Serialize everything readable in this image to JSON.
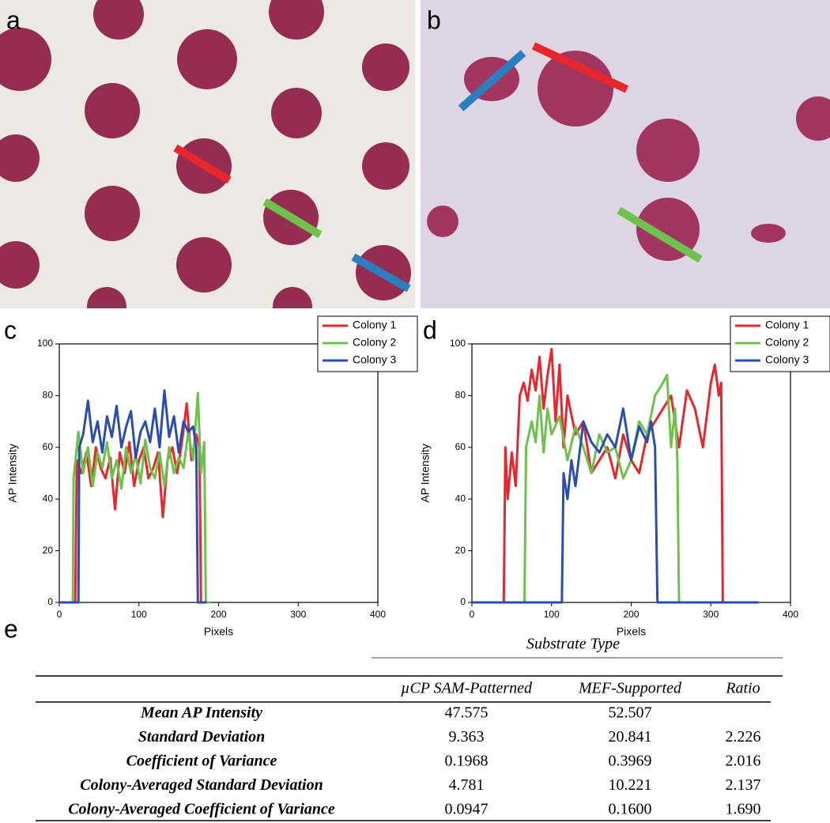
{
  "panel_labels": {
    "a": "a",
    "b": "b",
    "c": "c",
    "d": "d",
    "e": "e"
  },
  "chart_data": [
    {
      "type": "line",
      "xlabel": "Pixels",
      "ylabel": "AP Intensity",
      "xlim": [
        0,
        400
      ],
      "xticks": [
        0,
        100,
        200,
        300,
        400
      ],
      "ylim": [
        0,
        100
      ],
      "yticks": [
        0,
        20,
        40,
        60,
        80,
        100
      ],
      "legend": "upper right",
      "series": [
        {
          "name": "Colony 1",
          "color": "#e8262b",
          "x": [
            0,
            10,
            20,
            22,
            28,
            34,
            40,
            46,
            52,
            58,
            64,
            70,
            76,
            82,
            88,
            94,
            100,
            106,
            112,
            118,
            124,
            130,
            136,
            142,
            148,
            154,
            160,
            166,
            172,
            176,
            178,
            185
          ],
          "values": [
            0,
            0,
            0,
            55,
            50,
            58,
            45,
            60,
            52,
            48,
            56,
            36,
            58,
            50,
            62,
            45,
            55,
            60,
            48,
            52,
            58,
            33,
            55,
            60,
            50,
            62,
            77,
            55,
            65,
            60,
            0,
            0
          ]
        },
        {
          "name": "Colony 2",
          "color": "#6cc24a",
          "x": [
            0,
            10,
            17,
            18,
            24,
            30,
            36,
            42,
            48,
            54,
            60,
            66,
            72,
            78,
            84,
            90,
            96,
            102,
            108,
            114,
            120,
            126,
            132,
            138,
            144,
            150,
            156,
            162,
            168,
            174,
            178,
            182,
            184,
            190
          ],
          "values": [
            0,
            0,
            0,
            48,
            66,
            50,
            60,
            45,
            58,
            52,
            62,
            48,
            55,
            44,
            60,
            50,
            57,
            46,
            63,
            52,
            48,
            58,
            45,
            60,
            50,
            56,
            52,
            66,
            55,
            81,
            50,
            62,
            0,
            0
          ]
        },
        {
          "name": "Colony 3",
          "color": "#2b4db3",
          "x": [
            0,
            10,
            24,
            25,
            30,
            36,
            42,
            48,
            54,
            60,
            66,
            72,
            78,
            84,
            90,
            96,
            102,
            108,
            114,
            120,
            126,
            132,
            138,
            144,
            150,
            156,
            162,
            168,
            172,
            174,
            176,
            185
          ],
          "values": [
            0,
            0,
            0,
            60,
            65,
            78,
            62,
            70,
            58,
            72,
            64,
            76,
            60,
            68,
            74,
            56,
            66,
            70,
            62,
            75,
            60,
            82,
            64,
            72,
            58,
            70,
            66,
            68,
            60,
            0,
            0,
            0
          ]
        }
      ]
    },
    {
      "type": "line",
      "xlabel": "Pixels",
      "ylabel": "AP Intensity",
      "xlim": [
        0,
        400
      ],
      "xticks": [
        0,
        100,
        200,
        300,
        400
      ],
      "ylim": [
        0,
        100
      ],
      "yticks": [
        0,
        20,
        40,
        60,
        80,
        100
      ],
      "legend": "upper right",
      "series": [
        {
          "name": "Colony 1",
          "color": "#e8262b",
          "x": [
            0,
            40,
            42,
            45,
            50,
            55,
            60,
            65,
            70,
            75,
            80,
            85,
            90,
            95,
            100,
            105,
            110,
            115,
            120,
            130,
            140,
            150,
            160,
            170,
            180,
            190,
            200,
            210,
            220,
            230,
            240,
            250,
            260,
            270,
            280,
            290,
            300,
            305,
            310,
            313,
            315,
            330,
            360
          ],
          "values": [
            0,
            0,
            60,
            40,
            58,
            45,
            80,
            85,
            78,
            90,
            82,
            95,
            75,
            88,
            98,
            70,
            92,
            60,
            80,
            65,
            70,
            50,
            55,
            60,
            48,
            65,
            55,
            50,
            65,
            70,
            75,
            80,
            60,
            82,
            75,
            60,
            85,
            92,
            80,
            85,
            0,
            0,
            0
          ]
        },
        {
          "name": "Colony 2",
          "color": "#6cc24a",
          "x": [
            0,
            60,
            66,
            68,
            75,
            80,
            85,
            90,
            95,
            100,
            110,
            120,
            130,
            140,
            150,
            160,
            170,
            180,
            190,
            200,
            210,
            220,
            230,
            240,
            245,
            250,
            255,
            258,
            260,
            280,
            290
          ],
          "values": [
            0,
            0,
            0,
            60,
            70,
            62,
            80,
            58,
            75,
            65,
            72,
            55,
            68,
            60,
            50,
            65,
            58,
            60,
            48,
            55,
            70,
            65,
            80,
            85,
            88,
            60,
            75,
            55,
            0,
            0,
            0
          ]
        },
        {
          "name": "Colony 3",
          "color": "#2b4db3",
          "x": [
            0,
            110,
            113,
            115,
            120,
            125,
            130,
            140,
            150,
            160,
            170,
            180,
            190,
            200,
            210,
            220,
            225,
            230,
            233,
            235,
            250,
            360
          ],
          "values": [
            0,
            0,
            0,
            50,
            40,
            55,
            45,
            70,
            62,
            58,
            65,
            60,
            75,
            55,
            68,
            62,
            70,
            60,
            0,
            0,
            0,
            0
          ]
        }
      ]
    }
  ],
  "table": {
    "group_header": "Substrate Type",
    "columns": [
      "µCP SAM-Patterned",
      "MEF-Supported",
      "Ratio"
    ],
    "rows": [
      {
        "label": "Mean AP Intensity",
        "cells": [
          "47.575",
          "52.507"
        ]
      },
      {
        "label": "Standard Deviation",
        "cells": [
          "9.363",
          "20.841",
          "2.226"
        ]
      },
      {
        "label": "Coefficient of Variance",
        "cells": [
          "0.1968",
          "0.3969",
          "2.016"
        ]
      },
      {
        "label": "Colony-Averaged Standard Deviation",
        "cells": [
          "4.781",
          "10.221",
          "2.137"
        ]
      },
      {
        "label": "Colony-Averaged Coefficient of Variance",
        "cells": [
          "0.0947",
          "0.1600",
          "1.690"
        ]
      }
    ]
  }
}
